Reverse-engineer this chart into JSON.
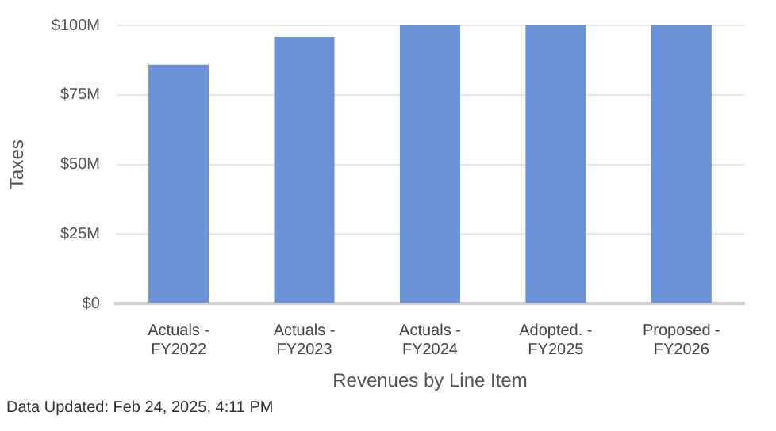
{
  "chart_data": {
    "type": "bar",
    "categories": [
      "Actuals - FY2022",
      "Actuals - FY2023",
      "Actuals - FY2024",
      "Adopted. - FY2025",
      "Proposed - FY2026"
    ],
    "values": [
      85.8,
      95.7,
      100,
      100,
      100
    ],
    "color": "#6a92d6",
    "ylim": [
      0,
      100
    ],
    "yticks": [
      {
        "value": 0,
        "label": "$0"
      },
      {
        "value": 25,
        "label": "$25M"
      },
      {
        "value": 50,
        "label": "$50M"
      },
      {
        "value": 75,
        "label": "$75M"
      },
      {
        "value": 100,
        "label": "$100M"
      }
    ],
    "ylabel": "Taxes",
    "xlabel": "Revenues by Line Item",
    "grid": "y",
    "legend": false,
    "annotations": [
      "Data Updated: Feb 24, 2025, 4:11 PM"
    ]
  }
}
